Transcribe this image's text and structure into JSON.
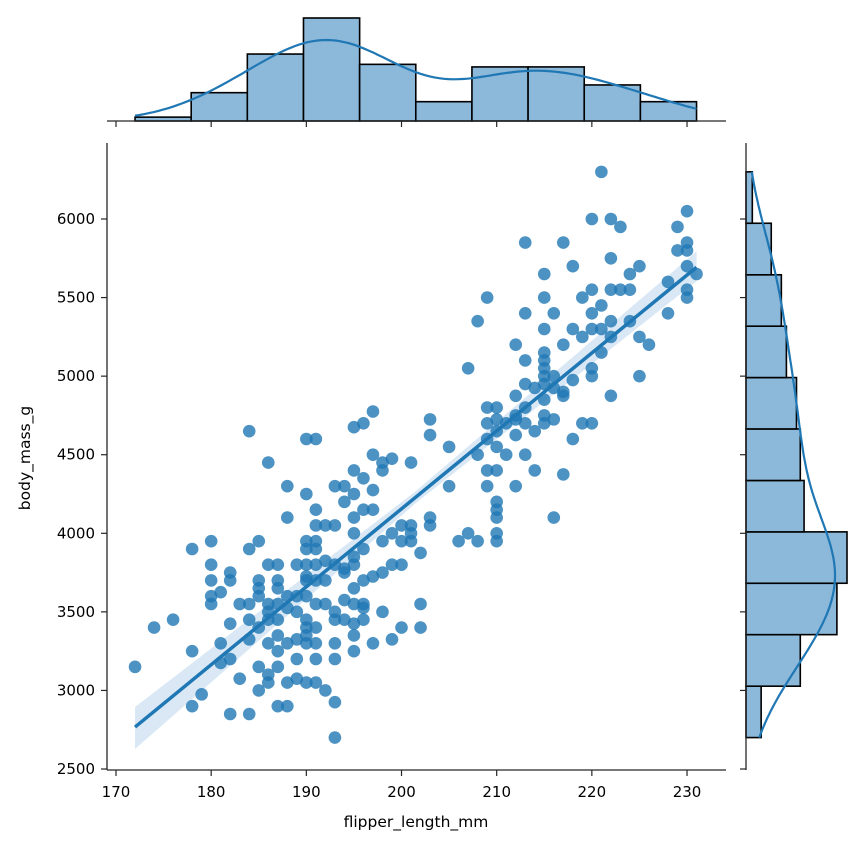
{
  "chart_data": {
    "type": "scatter",
    "title": "",
    "xlabel": "flipper_length_mm",
    "ylabel": "body_mass_g",
    "xlim": [
      169,
      235
    ],
    "ylim": [
      2480,
      6500
    ],
    "xticks": [
      170,
      180,
      190,
      200,
      210,
      220,
      230
    ],
    "yticks": [
      2500,
      3000,
      3500,
      4000,
      4500,
      5000,
      5500,
      6000
    ],
    "grid": false,
    "legend": null,
    "colors": {
      "points": "#1f77b4",
      "hist_fill": "#8cb8da",
      "hist_edge": "#000000",
      "kde": "#1f77b4",
      "ci_band": "#c6dcef"
    },
    "regression": {
      "x": [
        172,
        231
      ],
      "y": [
        2767,
        5693
      ],
      "ci_band": true
    },
    "marginal_x": {
      "type": "histogram",
      "bin_edges": [
        172,
        177.9,
        183.8,
        189.7,
        195.6,
        201.5,
        207.4,
        213.3,
        219.2,
        225.1,
        231
      ],
      "counts": [
        3,
        22,
        52,
        80,
        44,
        15,
        42,
        42,
        28,
        15
      ],
      "kde": true
    },
    "marginal_y": {
      "type": "histogram",
      "bin_edges": [
        2700,
        3027,
        3355,
        3682,
        4009,
        4336,
        4664,
        4991,
        5318,
        5645,
        5973,
        6300
      ],
      "counts": [
        12,
        43,
        72,
        80,
        46,
        43,
        40,
        32,
        28,
        20,
        5
      ],
      "kde": true
    },
    "points": [
      [
        172,
        3150
      ],
      [
        174,
        3400
      ],
      [
        176,
        3450
      ],
      [
        178,
        3900
      ],
      [
        178,
        3250
      ],
      [
        178,
        2900
      ],
      [
        179,
        2975
      ],
      [
        180,
        3950
      ],
      [
        180,
        3800
      ],
      [
        180,
        3700
      ],
      [
        180,
        3600
      ],
      [
        180,
        3550
      ],
      [
        181,
        3625
      ],
      [
        181,
        3300
      ],
      [
        181,
        3175
      ],
      [
        182,
        3750
      ],
      [
        182,
        3700
      ],
      [
        182,
        3200
      ],
      [
        182,
        2850
      ],
      [
        182,
        3425
      ],
      [
        183,
        3550
      ],
      [
        183,
        3075
      ],
      [
        184,
        3900
      ],
      [
        184,
        4650
      ],
      [
        184,
        3450
      ],
      [
        184,
        3550
      ],
      [
        184,
        2850
      ],
      [
        184,
        3325
      ],
      [
        185,
        3950
      ],
      [
        185,
        3700
      ],
      [
        185,
        3650
      ],
      [
        185,
        3600
      ],
      [
        185,
        3400
      ],
      [
        185,
        3150
      ],
      [
        185,
        3000
      ],
      [
        186,
        4450
      ],
      [
        186,
        3800
      ],
      [
        186,
        3550
      ],
      [
        186,
        3500
      ],
      [
        186,
        3450
      ],
      [
        186,
        3300
      ],
      [
        186,
        3100
      ],
      [
        186,
        3050
      ],
      [
        187,
        3800
      ],
      [
        187,
        3700
      ],
      [
        187,
        3650
      ],
      [
        187,
        3550
      ],
      [
        187,
        3450
      ],
      [
        187,
        3350
      ],
      [
        187,
        3250
      ],
      [
        187,
        3150
      ],
      [
        187,
        2900
      ],
      [
        188,
        4300
      ],
      [
        188,
        4100
      ],
      [
        188,
        3600
      ],
      [
        188,
        3525
      ],
      [
        188,
        3300
      ],
      [
        188,
        2900
      ],
      [
        188,
        3050
      ],
      [
        189,
        3800
      ],
      [
        189,
        3600
      ],
      [
        189,
        3500
      ],
      [
        189,
        3325
      ],
      [
        189,
        3200
      ],
      [
        189,
        3075
      ],
      [
        190,
        4600
      ],
      [
        190,
        4250
      ],
      [
        190,
        3950
      ],
      [
        190,
        3900
      ],
      [
        190,
        3800
      ],
      [
        190,
        3725
      ],
      [
        190,
        3700
      ],
      [
        190,
        3600
      ],
      [
        190,
        3450
      ],
      [
        190,
        3400
      ],
      [
        190,
        3350
      ],
      [
        190,
        3300
      ],
      [
        190,
        3050
      ],
      [
        191,
        4600
      ],
      [
        191,
        4150
      ],
      [
        191,
        4050
      ],
      [
        191,
        3950
      ],
      [
        191,
        3900
      ],
      [
        191,
        3800
      ],
      [
        191,
        3700
      ],
      [
        191,
        3550
      ],
      [
        191,
        3400
      ],
      [
        191,
        3300
      ],
      [
        191,
        3200
      ],
      [
        191,
        3050
      ],
      [
        192,
        4050
      ],
      [
        192,
        3825
      ],
      [
        192,
        3700
      ],
      [
        192,
        3550
      ],
      [
        192,
        3000
      ],
      [
        193,
        4300
      ],
      [
        193,
        4050
      ],
      [
        193,
        3800
      ],
      [
        193,
        3500
      ],
      [
        193,
        3450
      ],
      [
        193,
        3300
      ],
      [
        193,
        3200
      ],
      [
        193,
        2925
      ],
      [
        193,
        2700
      ],
      [
        194,
        4300
      ],
      [
        194,
        4200
      ],
      [
        194,
        3775
      ],
      [
        194,
        3750
      ],
      [
        194,
        3575
      ],
      [
        194,
        3450
      ],
      [
        195,
        4675
      ],
      [
        195,
        4400
      ],
      [
        195,
        4250
      ],
      [
        195,
        4100
      ],
      [
        195,
        4000
      ],
      [
        195,
        3850
      ],
      [
        195,
        3800
      ],
      [
        195,
        3650
      ],
      [
        195,
        3550
      ],
      [
        195,
        3425
      ],
      [
        195,
        3350
      ],
      [
        195,
        3250
      ],
      [
        196,
        4700
      ],
      [
        196,
        4350
      ],
      [
        196,
        4150
      ],
      [
        196,
        3900
      ],
      [
        196,
        3700
      ],
      [
        196,
        3550
      ],
      [
        196,
        3525
      ],
      [
        196,
        3450
      ],
      [
        197,
        4775
      ],
      [
        197,
        4500
      ],
      [
        197,
        4275
      ],
      [
        197,
        4150
      ],
      [
        197,
        3725
      ],
      [
        197,
        3300
      ],
      [
        198,
        4450
      ],
      [
        198,
        4400
      ],
      [
        198,
        3950
      ],
      [
        198,
        3750
      ],
      [
        198,
        3500
      ],
      [
        199,
        4475
      ],
      [
        199,
        4000
      ],
      [
        199,
        3800
      ],
      [
        199,
        3325
      ],
      [
        200,
        4050
      ],
      [
        200,
        3950
      ],
      [
        200,
        3800
      ],
      [
        200,
        3400
      ],
      [
        201,
        4450
      ],
      [
        201,
        4050
      ],
      [
        201,
        4000
      ],
      [
        201,
        3950
      ],
      [
        202,
        3875
      ],
      [
        202,
        3550
      ],
      [
        202,
        3400
      ],
      [
        203,
        4725
      ],
      [
        203,
        4625
      ],
      [
        203,
        4100
      ],
      [
        203,
        4050
      ],
      [
        205,
        4550
      ],
      [
        205,
        4300
      ],
      [
        206,
        3950
      ],
      [
        207,
        5050
      ],
      [
        207,
        4000
      ],
      [
        208,
        5350
      ],
      [
        208,
        4500
      ],
      [
        208,
        3950
      ],
      [
        209,
        5500
      ],
      [
        209,
        4800
      ],
      [
        209,
        4700
      ],
      [
        209,
        4600
      ],
      [
        209,
        4400
      ],
      [
        209,
        4300
      ],
      [
        210,
        4800
      ],
      [
        210,
        4725
      ],
      [
        210,
        4650
      ],
      [
        210,
        4550
      ],
      [
        210,
        4400
      ],
      [
        210,
        4200
      ],
      [
        210,
        4150
      ],
      [
        210,
        4100
      ],
      [
        210,
        4000
      ],
      [
        210,
        3950
      ],
      [
        211,
        4700
      ],
      [
        211,
        4500
      ],
      [
        212,
        5200
      ],
      [
        212,
        4875
      ],
      [
        212,
        4750
      ],
      [
        212,
        4725
      ],
      [
        212,
        4625
      ],
      [
        212,
        4300
      ],
      [
        213,
        5850
      ],
      [
        213,
        5400
      ],
      [
        213,
        5100
      ],
      [
        213,
        4950
      ],
      [
        213,
        4800
      ],
      [
        213,
        4700
      ],
      [
        213,
        4500
      ],
      [
        214,
        4925
      ],
      [
        214,
        4650
      ],
      [
        214,
        4400
      ],
      [
        215,
        5650
      ],
      [
        215,
        5500
      ],
      [
        215,
        5300
      ],
      [
        215,
        5150
      ],
      [
        215,
        5100
      ],
      [
        215,
        5050
      ],
      [
        215,
        5000
      ],
      [
        215,
        4950
      ],
      [
        215,
        4750
      ],
      [
        215,
        4700
      ],
      [
        215,
        4850
      ],
      [
        216,
        5400
      ],
      [
        216,
        5000
      ],
      [
        216,
        4925
      ],
      [
        216,
        4725
      ],
      [
        216,
        4100
      ],
      [
        217,
        5850
      ],
      [
        217,
        5200
      ],
      [
        217,
        4900
      ],
      [
        217,
        4875
      ],
      [
        217,
        4375
      ],
      [
        218,
        5700
      ],
      [
        218,
        5300
      ],
      [
        218,
        4975
      ],
      [
        218,
        4600
      ],
      [
        219,
        5500
      ],
      [
        219,
        5250
      ],
      [
        219,
        4700
      ],
      [
        220,
        6000
      ],
      [
        220,
        5550
      ],
      [
        220,
        5400
      ],
      [
        220,
        5300
      ],
      [
        220,
        5050
      ],
      [
        220,
        5000
      ],
      [
        220,
        4700
      ],
      [
        221,
        6300
      ],
      [
        221,
        5450
      ],
      [
        221,
        5300
      ],
      [
        221,
        5150
      ],
      [
        222,
        6000
      ],
      [
        222,
        5750
      ],
      [
        222,
        5550
      ],
      [
        222,
        5350
      ],
      [
        222,
        5250
      ],
      [
        222,
        4875
      ],
      [
        223,
        5950
      ],
      [
        223,
        5550
      ],
      [
        224,
        5650
      ],
      [
        224,
        5550
      ],
      [
        224,
        5350
      ],
      [
        225,
        5700
      ],
      [
        225,
        5250
      ],
      [
        225,
        5000
      ],
      [
        226,
        5200
      ],
      [
        228,
        5600
      ],
      [
        228,
        5400
      ],
      [
        229,
        5950
      ],
      [
        229,
        5800
      ],
      [
        230,
        6050
      ],
      [
        230,
        5850
      ],
      [
        230,
        5800
      ],
      [
        230,
        5700
      ],
      [
        230,
        5550
      ],
      [
        230,
        5500
      ],
      [
        231,
        5650
      ]
    ]
  }
}
